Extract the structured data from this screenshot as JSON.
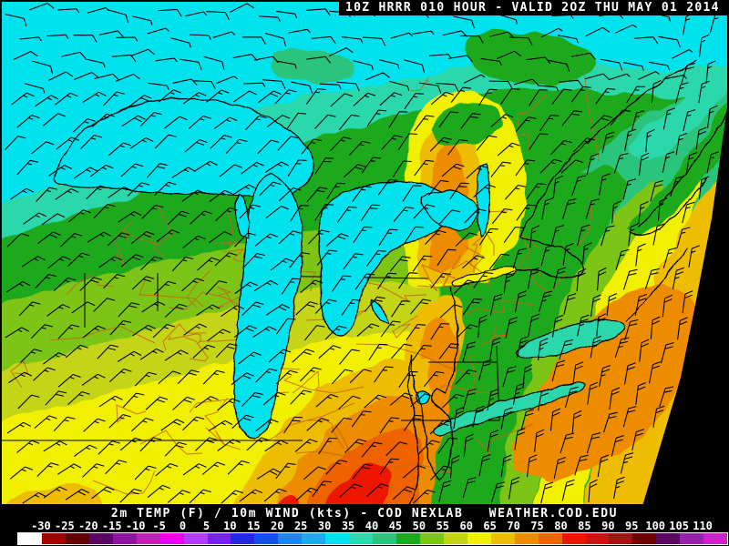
{
  "title_bar": {
    "text": "10Z HRRR 010 HOUR - VALID 2OZ THU MAY 01 2014",
    "background": "#000000",
    "text_color": "#ffffff"
  },
  "footer": {
    "caption": "2m TEMP (F) / 10m WIND (kts) - COD NEXLAB   WEATHER.COD.EDU",
    "background": "#000000",
    "text_color": "#ffffff",
    "colorbar": {
      "tick_labels": [
        "-30",
        "-25",
        "-20",
        "-15",
        "-10",
        "-5",
        "0",
        "5",
        "10",
        "15",
        "20",
        "25",
        "30",
        "35",
        "40",
        "45",
        "50",
        "55",
        "60",
        "65",
        "70",
        "75",
        "80",
        "85",
        "90",
        "95",
        "100",
        "105",
        "110"
      ],
      "segment_colors": [
        "#ffffff",
        "#a00000",
        "#640000",
        "#5a0864",
        "#8c14a0",
        "#c020b4",
        "#ee00ee",
        "#b43cff",
        "#7624ea",
        "#2428e6",
        "#1450f0",
        "#1c86ee",
        "#20aaee",
        "#00e2ee",
        "#2cd8ac",
        "#2cc47c",
        "#1caa1c",
        "#7cc414",
        "#c4d414",
        "#f0f000",
        "#eebc00",
        "#ee8c00",
        "#ee6400",
        "#ee1400",
        "#cc1414",
        "#a01414",
        "#700000",
        "#5a0864",
        "#9622aa",
        "#cc22cc"
      ],
      "border_color": "#ffffff"
    }
  },
  "map": {
    "wind_barb_color": "#000000",
    "coastline_color": "#000000",
    "state_border_color": "#000000",
    "road_color": "#c86414",
    "offgrid_color": "#000000",
    "regions": [
      {
        "name": "base-green",
        "temp_f": 47
      },
      {
        "name": "teal-band",
        "temp_f": 37
      },
      {
        "name": "canada-cyan",
        "temp_f": 32
      },
      {
        "name": "ontario-green-blob",
        "temp_f": 47
      },
      {
        "name": "quebec-teal-patch",
        "temp_f": 42
      },
      {
        "name": "maine-seagreen",
        "temp_f": 42
      },
      {
        "name": "fundy-teal",
        "temp_f": 37
      },
      {
        "name": "midwest-yellowgreen",
        "temp_f": 52
      },
      {
        "name": "midwest-olive",
        "temp_f": 57
      },
      {
        "name": "south-yellow",
        "temp_f": 62
      },
      {
        "name": "newengland-yellow",
        "temp_f": 62
      },
      {
        "name": "newengland-gold",
        "temp_f": 67
      },
      {
        "name": "hudson-valley-orange",
        "temp_f": 72
      },
      {
        "name": "adirondack-green",
        "temp_f": 47
      },
      {
        "name": "catskill-green",
        "temp_f": 47
      },
      {
        "name": "sne-coast-yellow",
        "temp_f": 62
      },
      {
        "name": "coastal-plain-gold",
        "temp_f": 67
      },
      {
        "name": "coastal-plain-orange",
        "temp_f": 72
      },
      {
        "name": "inland-south-gold",
        "temp_f": 67
      },
      {
        "name": "inland-south-orange",
        "temp_f": 72
      },
      {
        "name": "virginia-hot-darkorange",
        "temp_f": 77
      },
      {
        "name": "virginia-hot-red",
        "temp_f": 82
      },
      {
        "name": "carolina-red-patch",
        "temp_f": 82
      },
      {
        "name": "shelf-green-wedge",
        "temp_f": 47
      },
      {
        "name": "shelf-yellowgreen-band",
        "temp_f": 52
      },
      {
        "name": "offshore-yellow-band",
        "temp_f": 62
      },
      {
        "name": "offshore-gold",
        "temp_f": 67
      },
      {
        "name": "gulfstream-orange",
        "temp_f": 72
      },
      {
        "name": "bottomleft-gold-1",
        "temp_f": 67
      },
      {
        "name": "bottomleft-gold-2",
        "temp_f": 67
      },
      {
        "name": "nova-scotia-land",
        "temp_f": 47
      }
    ],
    "lakes": [
      {
        "name": "lake-superior",
        "temp_f": 32
      },
      {
        "name": "lake-michigan",
        "temp_f": 32
      },
      {
        "name": "green-bay",
        "temp_f": 32
      },
      {
        "name": "lake-huron",
        "temp_f": 32
      },
      {
        "name": "georgian-bay",
        "temp_f": 32
      },
      {
        "name": "saginaw-bay",
        "temp_f": 32
      },
      {
        "name": "lake-st-clair",
        "temp_f": 32
      },
      {
        "name": "lake-erie",
        "temp_f": 37
      },
      {
        "name": "lake-ontario",
        "temp_f": 37
      },
      {
        "name": "lake-champlain",
        "temp_f": 32
      }
    ],
    "long_island_temp_f": 62
  }
}
